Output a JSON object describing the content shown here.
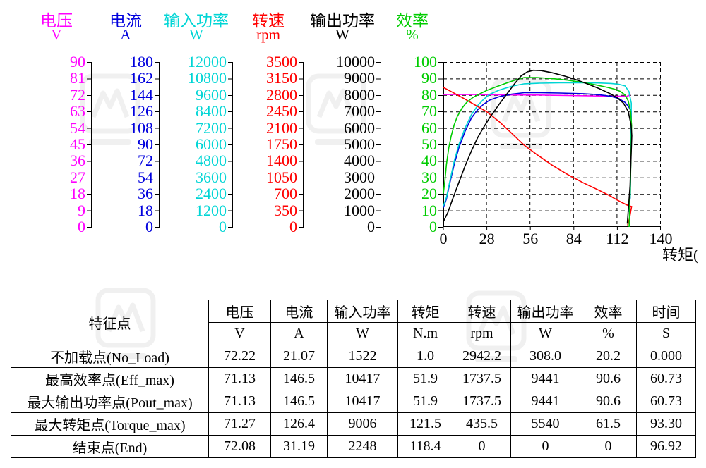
{
  "chart_data": {
    "type": "line",
    "grid": "dashed",
    "legend": "none",
    "x_axis": {
      "label": "转矩(",
      "min": 0,
      "max": 140,
      "tick_labels": [
        "0",
        "28",
        "56",
        "84",
        "112",
        "140"
      ]
    },
    "y_axes": [
      {
        "id": "voltage",
        "name": "电压",
        "unit": "V",
        "color": "#ff00ff",
        "min": 0,
        "max": 90,
        "tick_labels": [
          "90",
          "81",
          "72",
          "63",
          "54",
          "45",
          "36",
          "27",
          "18",
          "9",
          "0"
        ]
      },
      {
        "id": "current",
        "name": "电流",
        "unit": "A",
        "color": "#0000dd",
        "min": 0,
        "max": 180,
        "tick_labels": [
          "180",
          "162",
          "144",
          "126",
          "108",
          "90",
          "72",
          "54",
          "36",
          "18",
          "0"
        ]
      },
      {
        "id": "input-power",
        "name": "输入功率",
        "unit": "W",
        "color": "#00d5d5",
        "min": 0,
        "max": 12000,
        "tick_labels": [
          "12000",
          "10800",
          "9600",
          "8400",
          "7200",
          "6000",
          "4800",
          "3600",
          "2400",
          "1200",
          "0"
        ]
      },
      {
        "id": "speed",
        "name": "转速",
        "unit": "rpm",
        "color": "#ff0000",
        "min": 0,
        "max": 3500,
        "tick_labels": [
          "3500",
          "3150",
          "2800",
          "2450",
          "2100",
          "1750",
          "1400",
          "1050",
          "700",
          "350",
          "0"
        ]
      },
      {
        "id": "output-power",
        "name": "输出功率",
        "unit": "W",
        "color": "#000000",
        "min": 0,
        "max": 10000,
        "tick_labels": [
          "10000",
          "9000",
          "8000",
          "7000",
          "6000",
          "5000",
          "4000",
          "3000",
          "2000",
          "1000",
          "0"
        ]
      },
      {
        "id": "efficiency",
        "name": "效率",
        "unit": "%",
        "color": "#00cc00",
        "min": 0,
        "max": 100,
        "tick_labels": [
          "100",
          "90",
          "80",
          "70",
          "60",
          "50",
          "40",
          "30",
          "20",
          "10",
          "0"
        ]
      }
    ],
    "series": [
      {
        "id": "voltage",
        "name": "电压",
        "color": "#ff00ff",
        "scale_max": 90,
        "points_pct": [
          [
            0,
            80.3
          ],
          [
            20,
            80.3
          ],
          [
            40,
            80.1
          ],
          [
            60,
            80.0
          ],
          [
            80,
            79.7
          ],
          [
            100,
            79.4
          ],
          [
            110,
            79.3
          ],
          [
            118,
            79.2
          ],
          [
            120.5,
            80.1
          ]
        ]
      },
      {
        "id": "current",
        "name": "电流",
        "color": "#0000dd",
        "scale_max": 180,
        "points_pct": [
          [
            0,
            11.7
          ],
          [
            2,
            17
          ],
          [
            4,
            26
          ],
          [
            7,
            38
          ],
          [
            10,
            48
          ],
          [
            14,
            58
          ],
          [
            18,
            66
          ],
          [
            22,
            71
          ],
          [
            26,
            74.5
          ],
          [
            30,
            77
          ],
          [
            36,
            79
          ],
          [
            44,
            80.5
          ],
          [
            52,
            81.4
          ],
          [
            62,
            81.4
          ],
          [
            75,
            81.2
          ],
          [
            90,
            80.8
          ],
          [
            100,
            80.2
          ],
          [
            108,
            79.2
          ],
          [
            113,
            77.8
          ],
          [
            117,
            75.5
          ],
          [
            119.5,
            72.5
          ],
          [
            121,
            70.2
          ],
          [
            120.3,
            17.3
          ]
        ]
      },
      {
        "id": "input-power",
        "name": "输入功率",
        "color": "#00d5d5",
        "scale_max": 12000,
        "points_pct": [
          [
            0,
            12.7
          ],
          [
            2,
            18
          ],
          [
            4,
            27
          ],
          [
            7,
            40
          ],
          [
            10,
            50
          ],
          [
            14,
            60
          ],
          [
            18,
            68
          ],
          [
            22,
            73.5
          ],
          [
            26,
            77.5
          ],
          [
            30,
            80.5
          ],
          [
            36,
            83
          ],
          [
            44,
            85.3
          ],
          [
            52,
            86.8
          ],
          [
            62,
            87.2
          ],
          [
            75,
            87.4
          ],
          [
            90,
            87.4
          ],
          [
            100,
            87.3
          ],
          [
            108,
            87
          ],
          [
            113,
            86.5
          ],
          [
            117,
            85.5
          ],
          [
            119.5,
            82
          ],
          [
            121,
            75
          ],
          [
            120.3,
            18.7
          ],
          [
            119.5,
            9
          ]
        ]
      },
      {
        "id": "speed",
        "name": "转速",
        "color": "#ff0000",
        "scale_max": 3500,
        "points_pct": [
          [
            0,
            84.6
          ],
          [
            4,
            82.6
          ],
          [
            8,
            80.6
          ],
          [
            14,
            77.5
          ],
          [
            20,
            74.2
          ],
          [
            28,
            69.8
          ],
          [
            36,
            63.8
          ],
          [
            44,
            56.8
          ],
          [
            52,
            49.6
          ],
          [
            60,
            44
          ],
          [
            70,
            37.5
          ],
          [
            80,
            31.8
          ],
          [
            90,
            26.8
          ],
          [
            100,
            22.3
          ],
          [
            107,
            19
          ],
          [
            112,
            16.3
          ],
          [
            116,
            14.3
          ],
          [
            119,
            13
          ],
          [
            121.2,
            12.4
          ],
          [
            120,
            6
          ],
          [
            118.6,
            1
          ]
        ]
      },
      {
        "id": "efficiency",
        "name": "效率",
        "color": "#00cc00",
        "scale_max": 100,
        "points_pct": [
          [
            0,
            20.2
          ],
          [
            1,
            28
          ],
          [
            2,
            38
          ],
          [
            3.5,
            48
          ],
          [
            5,
            55
          ],
          [
            7,
            62
          ],
          [
            9,
            67
          ],
          [
            12,
            72
          ],
          [
            15,
            75.5
          ],
          [
            19,
            78.5
          ],
          [
            24,
            81
          ],
          [
            28,
            82.8
          ],
          [
            34,
            85
          ],
          [
            40,
            87
          ],
          [
            46,
            89
          ],
          [
            52,
            90.6
          ],
          [
            60,
            90.6
          ],
          [
            70,
            90
          ],
          [
            80,
            89
          ],
          [
            90,
            87.6
          ],
          [
            98,
            86.2
          ],
          [
            105,
            84.8
          ],
          [
            110,
            83.6
          ],
          [
            114,
            82.2
          ],
          [
            117,
            80
          ],
          [
            119,
            76.5
          ],
          [
            120.5,
            70
          ],
          [
            121.2,
            61.5
          ],
          [
            120.5,
            30
          ],
          [
            119.6,
            0
          ]
        ]
      },
      {
        "id": "output-power",
        "name": "输出功率",
        "color": "#000000",
        "scale_max": 10000,
        "points_pct": [
          [
            0,
            3.1
          ],
          [
            3,
            9
          ],
          [
            6,
            17
          ],
          [
            10,
            27
          ],
          [
            14,
            37
          ],
          [
            18,
            46
          ],
          [
            22,
            54
          ],
          [
            26,
            60.5
          ],
          [
            30,
            66.5
          ],
          [
            36,
            74.5
          ],
          [
            42,
            82
          ],
          [
            46,
            87
          ],
          [
            50,
            91.5
          ],
          [
            54,
            94
          ],
          [
            58,
            95
          ],
          [
            63,
            94.8
          ],
          [
            70,
            93.5
          ],
          [
            78,
            91.5
          ],
          [
            84,
            89.8
          ],
          [
            92,
            87
          ],
          [
            100,
            84
          ],
          [
            107,
            81
          ],
          [
            112,
            78.3
          ],
          [
            116,
            75
          ],
          [
            119,
            70
          ],
          [
            120.8,
            62
          ],
          [
            121.3,
            55.4
          ],
          [
            120.2,
            25
          ],
          [
            118.4,
            2
          ]
        ]
      }
    ]
  },
  "table": {
    "corner": "特征点",
    "columns": [
      {
        "label": "电压",
        "unit": "V"
      },
      {
        "label": "电流",
        "unit": "A"
      },
      {
        "label": "输入功率",
        "unit": "W"
      },
      {
        "label": "转矩",
        "unit": "N.m"
      },
      {
        "label": "转速",
        "unit": "rpm"
      },
      {
        "label": "输出功率",
        "unit": "W"
      },
      {
        "label": "效率",
        "unit": "%"
      },
      {
        "label": "时间",
        "unit": "S"
      }
    ],
    "rows": [
      {
        "label": "不加载点(No_Load)",
        "values": [
          "72.22",
          "21.07",
          "1522",
          "1.0",
          "2942.2",
          "308.0",
          "20.2",
          "0.000"
        ]
      },
      {
        "label": "最高效率点(Eff_max)",
        "values": [
          "71.13",
          "146.5",
          "10417",
          "51.9",
          "1737.5",
          "9441",
          "90.6",
          "60.73"
        ]
      },
      {
        "label": "最大输出功率点(Pout_max)",
        "values": [
          "71.13",
          "146.5",
          "10417",
          "51.9",
          "1737.5",
          "9441",
          "90.6",
          "60.73"
        ]
      },
      {
        "label": "最大转矩点(Torque_max)",
        "values": [
          "71.27",
          "126.4",
          "9006",
          "121.5",
          "435.5",
          "5540",
          "61.5",
          "93.30"
        ]
      },
      {
        "label": "结束点(End)",
        "values": [
          "72.08",
          "31.19",
          "2248",
          "118.4",
          "0",
          "0",
          "0",
          "96.92"
        ]
      }
    ]
  }
}
